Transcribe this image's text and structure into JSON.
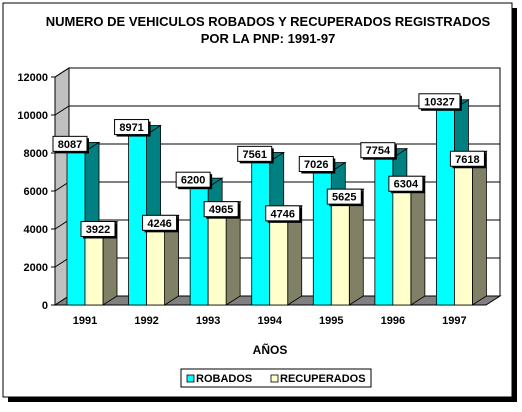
{
  "chart_data": {
    "type": "bar",
    "title": [
      "NUMERO DE VEHICULOS ROBADOS Y RECUPERADOS REGISTRADOS",
      "POR LA PNP: 1991-97"
    ],
    "xlabel": "AÑOS",
    "ylabel": "",
    "categories": [
      "1991",
      "1992",
      "1993",
      "1994",
      "1995",
      "1996",
      "1997"
    ],
    "ylim": [
      0,
      12000
    ],
    "yticks": [
      "0",
      "2000",
      "4000",
      "6000",
      "8000",
      "10000",
      "12000"
    ],
    "grid": true,
    "legend_placement": "bottom",
    "series": [
      {
        "name": "ROBADOS",
        "values": [
          8087,
          8971,
          6200,
          7561,
          7026,
          7754,
          10327
        ],
        "color": "#00FFFF",
        "side_color": "#008080"
      },
      {
        "name": "RECUPERADOS",
        "values": [
          3922,
          4246,
          4965,
          4746,
          5625,
          6304,
          7618
        ],
        "color": "#FFFFCC",
        "side_color": "#808066"
      }
    ]
  }
}
